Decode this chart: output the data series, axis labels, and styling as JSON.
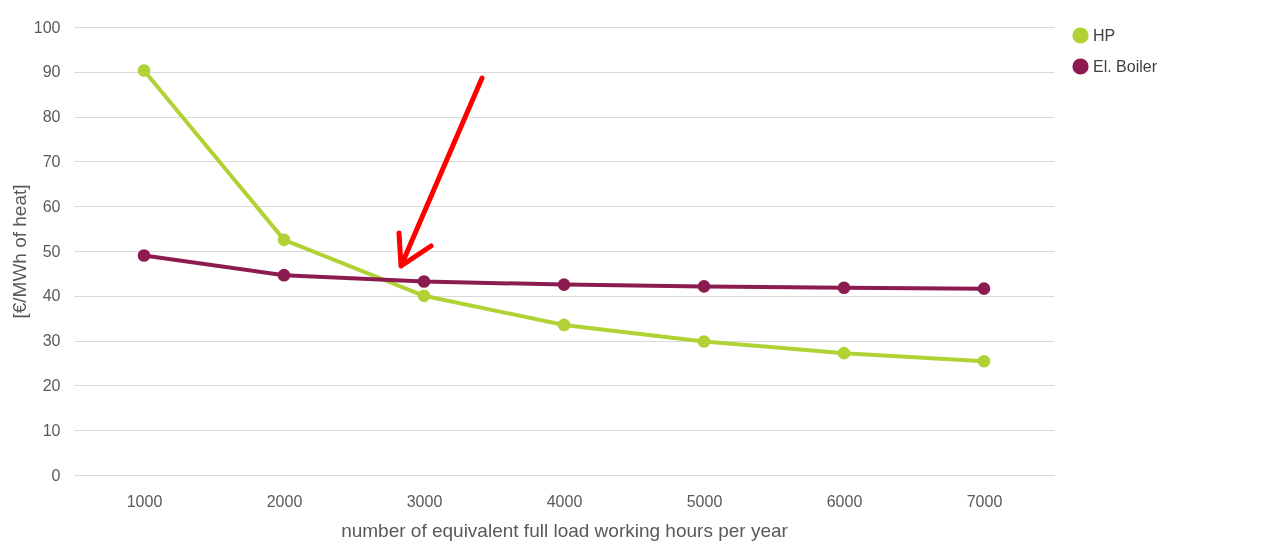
{
  "chart_data": {
    "type": "line",
    "xlabel": "number of equivalent full load working hours per year",
    "ylabel": "[€/MWh of heat]",
    "categories": [
      "1000",
      "2000",
      "3000",
      "4000",
      "5000",
      "6000",
      "7000"
    ],
    "series": [
      {
        "name": "HP",
        "color": "#b0d235",
        "values": [
          90.3,
          52.5,
          40.0,
          33.5,
          29.8,
          27.2,
          25.4
        ]
      },
      {
        "name": "El. Boiler",
        "color": "#8c1c50",
        "values": [
          49.0,
          44.6,
          43.2,
          42.5,
          42.1,
          41.8,
          41.6
        ]
      }
    ],
    "ylim": [
      0,
      100
    ],
    "yticks": [
      0,
      10,
      20,
      30,
      40,
      50,
      60,
      70,
      80,
      90,
      100
    ],
    "grid": "y",
    "legend": "right",
    "marker": "circle",
    "line_style": "solid"
  }
}
